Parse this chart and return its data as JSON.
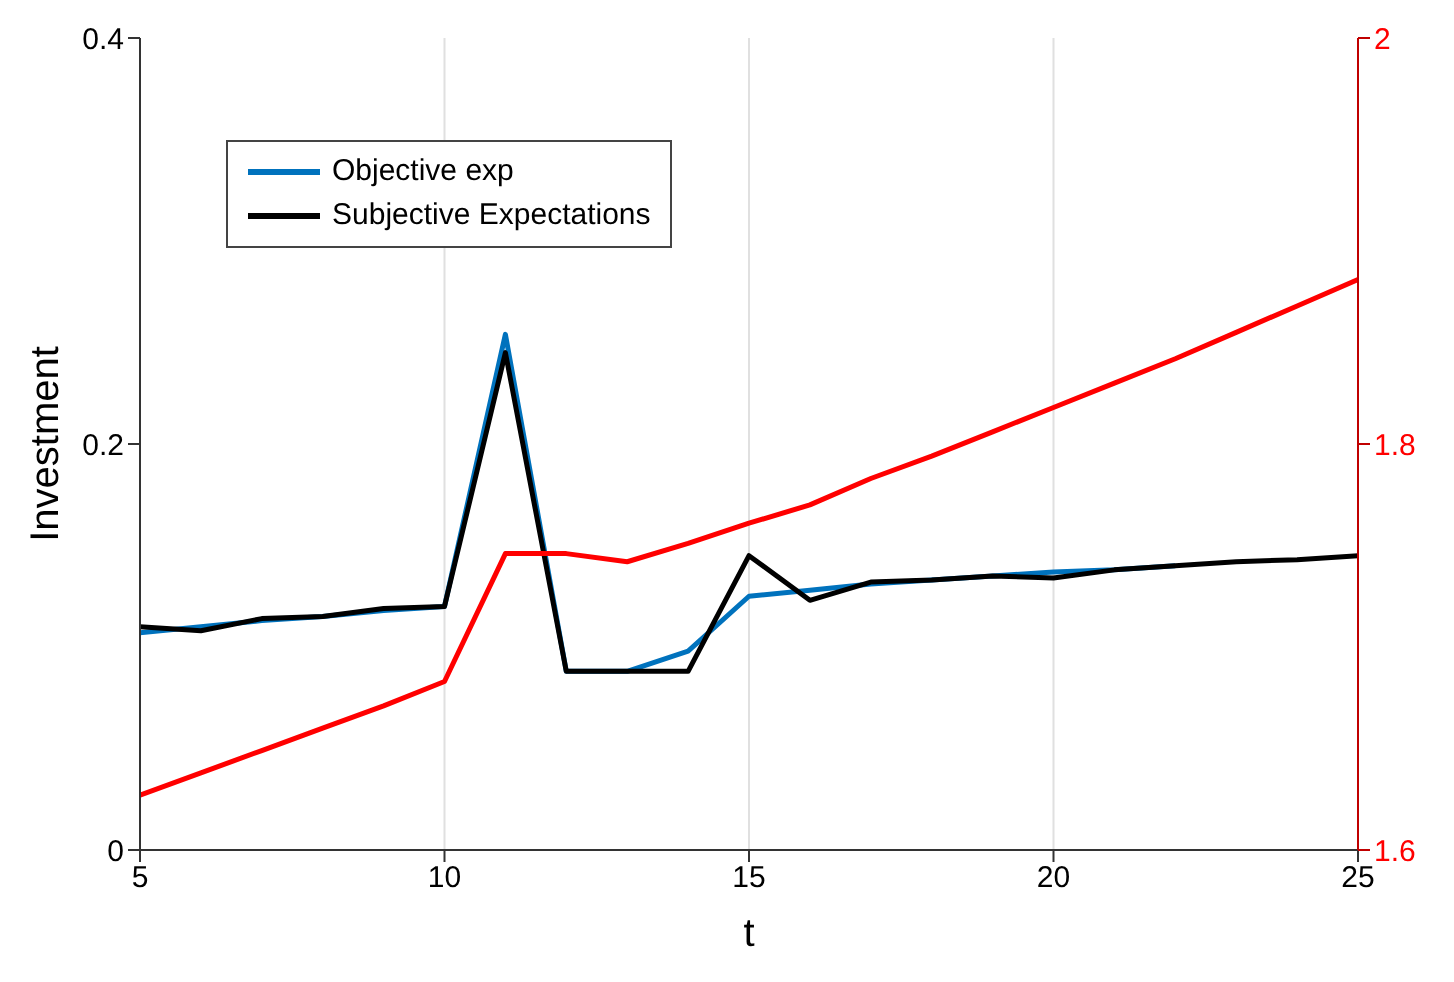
{
  "chart_data": {
    "type": "line",
    "xlabel": "t",
    "ylabel": "Investment",
    "x": [
      5,
      6,
      7,
      8,
      9,
      10,
      11,
      12,
      13,
      14,
      15,
      16,
      17,
      18,
      19,
      20,
      21,
      22,
      23,
      24,
      25
    ],
    "series": [
      {
        "name": "Objective exp",
        "color": "#0072bd",
        "values": [
          0.107,
          0.11,
          0.113,
          0.115,
          0.118,
          0.12,
          0.254,
          0.088,
          0.088,
          0.098,
          0.125,
          0.128,
          0.131,
          0.133,
          0.135,
          0.137,
          0.138,
          0.14,
          null,
          null,
          null
        ]
      },
      {
        "name": "Subjective Expectations",
        "color": "#000000",
        "values": [
          0.11,
          0.108,
          0.114,
          0.115,
          0.119,
          0.12,
          0.245,
          0.088,
          0.088,
          0.088,
          0.145,
          0.123,
          0.132,
          0.133,
          0.135,
          0.134,
          0.138,
          0.14,
          0.142,
          0.143,
          0.145
        ]
      },
      {
        "color": "#ff0000",
        "axis": "y2",
        "values": [
          1.627,
          1.638,
          1.649,
          1.66,
          1.671,
          1.683,
          1.746,
          1.746,
          1.742,
          1.751,
          1.761,
          1.77,
          1.783,
          1.794,
          1.806,
          1.818,
          1.83,
          1.842,
          1.855,
          1.868,
          1.881
        ]
      }
    ],
    "xlim": [
      5,
      25
    ],
    "xticks": [
      5,
      10,
      15,
      20,
      25
    ],
    "ylim": [
      0,
      0.4
    ],
    "yticks": [
      0,
      0.2,
      0.4
    ],
    "y2lim": [
      1.6,
      2
    ],
    "y2ticks": [
      1.6,
      1.8,
      2
    ],
    "grid": "x",
    "legend": "top left",
    "marker": "none",
    "line_style": "solid"
  }
}
